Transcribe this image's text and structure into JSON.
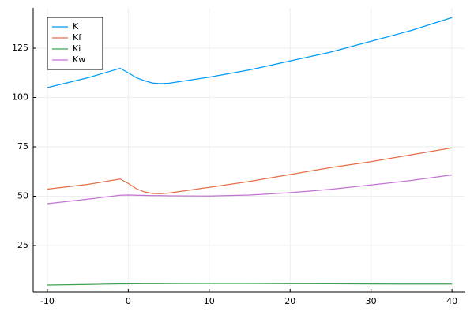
{
  "chart_data": {
    "type": "line",
    "x": [
      -10,
      -5,
      -1,
      0,
      1,
      2,
      3,
      4,
      5,
      10,
      15,
      20,
      25,
      30,
      35,
      40
    ],
    "series": [
      {
        "name": "K",
        "color": "#009af9",
        "values": [
          105,
          110,
          114.8,
          112.5,
          110,
          108.5,
          107.3,
          107,
          107.2,
          110.3,
          114,
          118.5,
          123,
          128.5,
          134,
          140.5
        ]
      },
      {
        "name": "Kf",
        "color": "#e26f46",
        "values": [
          53.6,
          56,
          58.7,
          56.5,
          53.8,
          52.2,
          51.4,
          51.3,
          51.6,
          54.5,
          57.5,
          61,
          64.5,
          67.5,
          71,
          74.5
        ]
      },
      {
        "name": "Ki",
        "color": "#3da44d",
        "values": [
          5.0,
          5.3,
          5.6,
          5.6,
          5.65,
          5.7,
          5.7,
          5.7,
          5.75,
          5.8,
          5.8,
          5.7,
          5.65,
          5.55,
          5.5,
          5.5
        ]
      },
      {
        "name": "Kw",
        "color": "#c271d2",
        "values": [
          46.2,
          48.5,
          50.5,
          50.6,
          50.5,
          50.4,
          50.3,
          50.3,
          50.2,
          50.1,
          50.6,
          51.8,
          53.5,
          55.7,
          58,
          60.8
        ]
      }
    ],
    "xlim": [
      -11.75,
      41.55
    ],
    "xticks": [
      -10,
      0,
      10,
      20,
      30,
      40
    ],
    "ylim": [
      1.4,
      145.4
    ],
    "yticks": [
      25,
      50,
      75,
      100,
      125
    ],
    "grid": true,
    "legend": "top-left"
  }
}
